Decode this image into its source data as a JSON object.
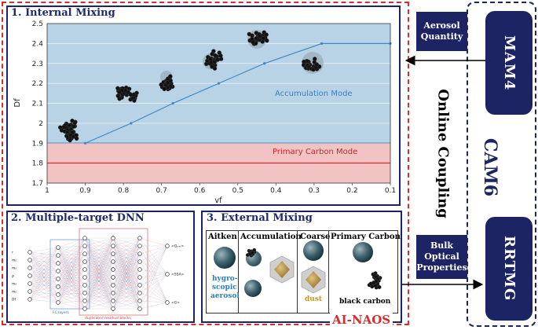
{
  "panel1": {
    "title": "1. Internal Mixing",
    "chart_data": {
      "type": "line",
      "xlabel": "vf",
      "ylabel": "Df",
      "xlim": [
        1,
        0.1
      ],
      "ylim": [
        1.7,
        2.5
      ],
      "x_ticks": [
        "1",
        "0.9",
        "0.8",
        "0.7",
        "0.6",
        "0.5",
        "0.4",
        "0.3",
        "0.2",
        "0.1"
      ],
      "y_ticks": [
        "1.7",
        "1.8",
        "1.9",
        "2",
        "2.1",
        "2.2",
        "2.3",
        "2.4",
        "2.5"
      ],
      "series": [
        {
          "name": "Accumulation Mode",
          "x": [
            0.9,
            0.78,
            0.67,
            0.55,
            0.43,
            0.28,
            0.1
          ],
          "y": [
            1.9,
            2.0,
            2.1,
            2.2,
            2.3,
            2.4,
            2.4
          ]
        },
        {
          "name": "Primary Carbon Mode",
          "x": [
            1,
            0.1
          ],
          "y": [
            1.8,
            1.8
          ]
        }
      ],
      "regions": [
        {
          "name": "Accumulation Mode",
          "y_range": [
            1.9,
            2.5
          ],
          "color": "#b9d3e6"
        },
        {
          "name": "Primary Carbon Mode",
          "y_range": [
            1.7,
            1.9
          ],
          "color": "#f2c3c3"
        }
      ]
    }
  },
  "panel2": {
    "title": "2. Multiple-target DNN",
    "inputs": [
      "r",
      "m₀",
      "m₀",
      "ρ",
      "m₀",
      "m₀",
      "Df"
    ],
    "outputs": [
      "<Qₑₓₜ>",
      "<SSA>",
      "<G>"
    ],
    "fc_label": "FC layers",
    "res_label": "duplicated residual blocks"
  },
  "panel3": {
    "title": "3. External Mixing",
    "columns": [
      {
        "label": "Aitken",
        "note1": "hygro-",
        "note2": "scopic",
        "note3": "aerosol"
      },
      {
        "label": "Accumulation"
      },
      {
        "label": "Coarse",
        "note1": "dust"
      },
      {
        "label": "Primary Carbon",
        "note1": "black carbon"
      }
    ]
  },
  "center": {
    "label": "Online Coupling"
  },
  "right": {
    "mam4": "MAM4",
    "cam6": "CAM6",
    "rrtmg": "RRTMG",
    "aerosol_quantity": "Aerosol Quantity",
    "bulk_optical": "Bulk Optical Properties"
  },
  "footer": {
    "ai_naos": "AI-NAOS"
  },
  "colors": {
    "navy": "#1c2463",
    "red": "#d32f2f",
    "blue_region": "#b9d3e6",
    "red_region": "#f2c3c3"
  }
}
